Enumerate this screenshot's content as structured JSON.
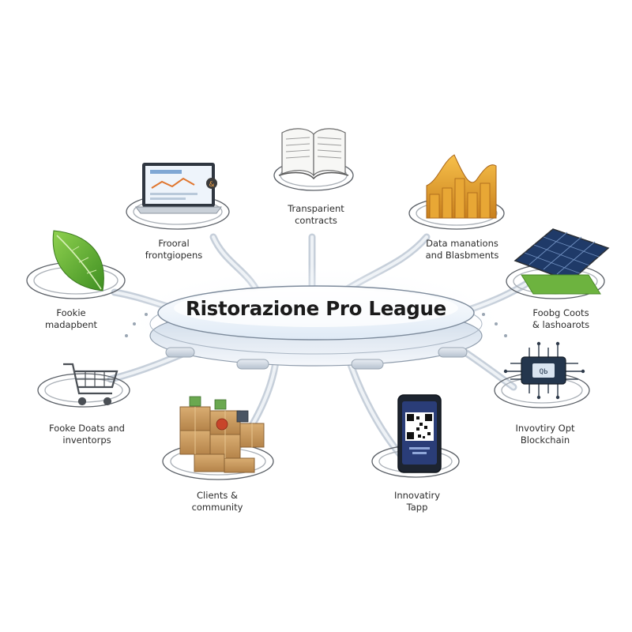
{
  "hub": {
    "title": "Ristorazione Pro League"
  },
  "nodes": [
    {
      "label": "Frooral\nfrontgiopens",
      "icon": "laptop-icon"
    },
    {
      "label": "Transparient\ncontracts",
      "icon": "book-icon"
    },
    {
      "label": "Data manations\nand Blasbments",
      "icon": "chart-icon"
    },
    {
      "label": "Fookie\nmadapbent",
      "icon": "leaf-icon"
    },
    {
      "label": "Foobg Coots\n& lashoarots",
      "icon": "solar-panel-icon"
    },
    {
      "label": "Fooke Doats and\ninventorps",
      "icon": "shopping-cart-icon"
    },
    {
      "label": "Invovtiry Opt\nBlockchain",
      "icon": "microchip-icon"
    },
    {
      "label": "Clients &\ncommunity",
      "icon": "boxes-icon"
    },
    {
      "label": "Innovatiry\nTapp",
      "icon": "qr-phone-icon"
    }
  ]
}
